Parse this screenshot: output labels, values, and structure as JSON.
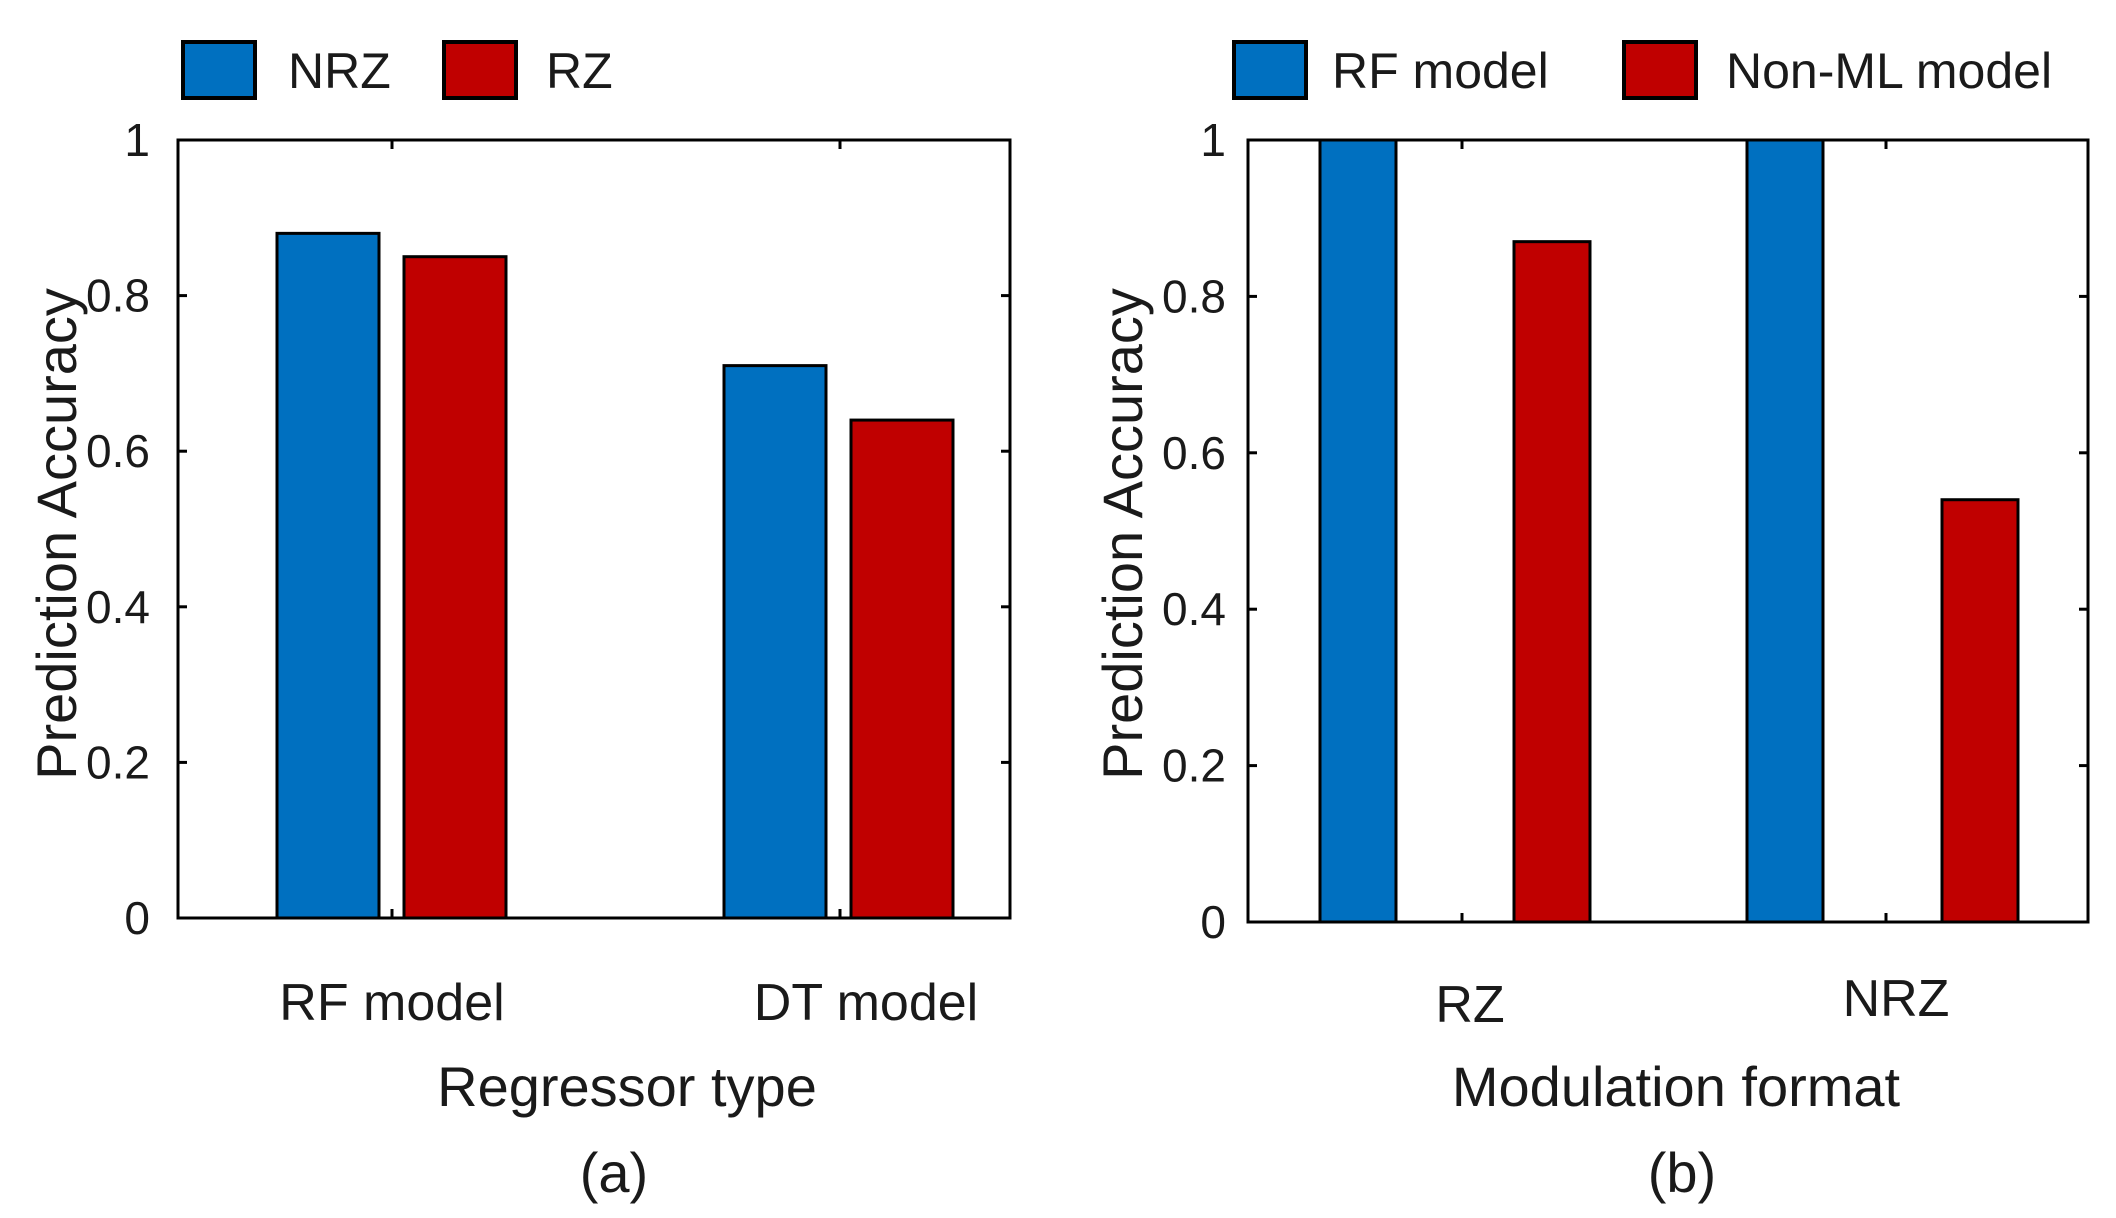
{
  "chart_data": [
    {
      "type": "bar",
      "panel_label": "(a)",
      "xlabel": "Regressor type",
      "ylabel": "Prediction Accuracy",
      "categories": [
        "RF model",
        "DT model"
      ],
      "series": [
        {
          "name": "NRZ",
          "color": "#0070C0",
          "values": [
            0.88,
            0.71
          ]
        },
        {
          "name": "RZ",
          "color": "#C00000",
          "values": [
            0.85,
            0.64
          ]
        }
      ],
      "ylim": [
        0,
        1
      ],
      "yticks": [
        "0",
        "0.2",
        "0.4",
        "0.6",
        "0.8",
        "1"
      ],
      "legend_position": "top",
      "grid": false
    },
    {
      "type": "bar",
      "panel_label": "(b)",
      "xlabel": "Modulation format",
      "ylabel": "Prediction Accuracy",
      "categories": [
        "RZ",
        "NRZ"
      ],
      "series": [
        {
          "name": "RF model",
          "color": "#0070C0",
          "values": [
            1.0,
            1.0
          ]
        },
        {
          "name": "Non-ML model",
          "color": "#C00000",
          "values": [
            0.87,
            0.54
          ]
        }
      ],
      "ylim": [
        0,
        1
      ],
      "yticks": [
        "0",
        "0.2",
        "0.4",
        "0.6",
        "0.8",
        "1"
      ],
      "legend_position": "top",
      "grid": false
    }
  ]
}
